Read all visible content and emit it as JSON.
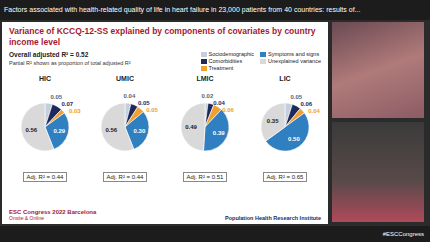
{
  "banner": "Factors associated with health-related quality of life in heart failure in 23,000 patients from 40 countries: results of...",
  "slide": {
    "title": "Variance of KCCQ-12-SS explained by components of covariates by country income level",
    "overall": "Overall adjusted R² = 0.52",
    "note": "Partial R² shown as proportion of total adjusted R²",
    "footer_left": [
      "ESC Congress 2022 Barcelona",
      "Onsite & Online"
    ],
    "footer_right": "Population Health Research Institute"
  },
  "bottom_bar": "#ESCCongress",
  "chart_data": [
    {
      "type": "pie",
      "title": "HIC",
      "categories": [
        "Sociodemographic",
        "Comorbidities",
        "Treatment",
        "Symptoms and signs",
        "Unexplained variance"
      ],
      "values": [
        0.05,
        0.07,
        0.03,
        0.29,
        0.56
      ],
      "value_labels": [
        "0.05",
        "0.07",
        "0.03",
        "0.29",
        "0.56"
      ],
      "colors": [
        "#c3cfdc",
        "#1f2a5c",
        "#f0a030",
        "#2f7fc1",
        "#d9d9d9"
      ],
      "data_labels": true,
      "legend": "top",
      "annotations": [
        "Adj. R² = 0.44"
      ]
    },
    {
      "type": "pie",
      "title": "UMIC",
      "categories": [
        "Sociodemographic",
        "Comorbidities",
        "Treatment",
        "Symptoms and signs",
        "Unexplained variance"
      ],
      "values": [
        0.04,
        0.05,
        0.05,
        0.3,
        0.56
      ],
      "value_labels": [
        "0.04",
        "0.05",
        "0.05",
        "0.30",
        "0.56"
      ],
      "colors": [
        "#c3cfdc",
        "#1f2a5c",
        "#f0a030",
        "#2f7fc1",
        "#d9d9d9"
      ],
      "data_labels": true,
      "legend": "top",
      "annotations": [
        "Adj. R² = 0.44"
      ]
    },
    {
      "type": "pie",
      "title": "LMIC",
      "categories": [
        "Sociodemographic",
        "Comorbidities",
        "Treatment",
        "Symptoms and signs",
        "Unexplained variance"
      ],
      "values": [
        0.02,
        0.04,
        0.06,
        0.39,
        0.49
      ],
      "value_labels": [
        "0.02",
        "0.04",
        "0.06",
        "0.39",
        "0.49"
      ],
      "colors": [
        "#c3cfdc",
        "#1f2a5c",
        "#f0a030",
        "#2f7fc1",
        "#d9d9d9"
      ],
      "data_labels": true,
      "legend": "top",
      "annotations": [
        "Adj. R² = 0.51"
      ]
    },
    {
      "type": "pie",
      "title": "LIC",
      "categories": [
        "Sociodemographic",
        "Comorbidities",
        "Treatment",
        "Symptoms and signs",
        "Unexplained variance"
      ],
      "values": [
        0.05,
        0.06,
        0.04,
        0.5,
        0.35
      ],
      "value_labels": [
        "0.05",
        "0.06",
        "0.04",
        "0.50",
        "0.35"
      ],
      "colors": [
        "#c3cfdc",
        "#1f2a5c",
        "#f0a030",
        "#2f7fc1",
        "#d9d9d9"
      ],
      "data_labels": true,
      "legend": "top",
      "annotations": [
        "Adj. R² = 0.65"
      ]
    }
  ]
}
